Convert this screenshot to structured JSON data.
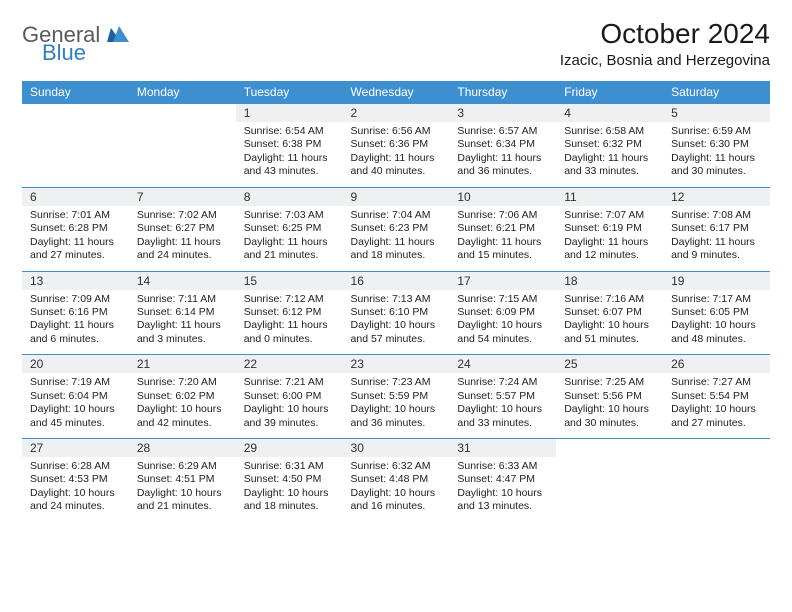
{
  "logo": {
    "general": "General",
    "blue": "Blue"
  },
  "title": "October 2024",
  "location": "Izacic, Bosnia and Herzegovina",
  "colors": {
    "header_bg": "#3d8fcf",
    "header_text": "#ffffff",
    "daynum_bg": "#eef0f2",
    "rule": "#3d8fcf",
    "logo_gray": "#5a5a5a",
    "logo_blue": "#2f7fc1"
  },
  "typography": {
    "title_fontsize": 28,
    "location_fontsize": 15,
    "dayhead_fontsize": 12,
    "daynum_fontsize": 12,
    "body_fontsize": 10.5
  },
  "day_headers": [
    "Sunday",
    "Monday",
    "Tuesday",
    "Wednesday",
    "Thursday",
    "Friday",
    "Saturday"
  ],
  "weeks": [
    [
      {
        "n": "",
        "lines": []
      },
      {
        "n": "",
        "lines": []
      },
      {
        "n": "1",
        "lines": [
          "Sunrise: 6:54 AM",
          "Sunset: 6:38 PM",
          "Daylight: 11 hours",
          "and 43 minutes."
        ]
      },
      {
        "n": "2",
        "lines": [
          "Sunrise: 6:56 AM",
          "Sunset: 6:36 PM",
          "Daylight: 11 hours",
          "and 40 minutes."
        ]
      },
      {
        "n": "3",
        "lines": [
          "Sunrise: 6:57 AM",
          "Sunset: 6:34 PM",
          "Daylight: 11 hours",
          "and 36 minutes."
        ]
      },
      {
        "n": "4",
        "lines": [
          "Sunrise: 6:58 AM",
          "Sunset: 6:32 PM",
          "Daylight: 11 hours",
          "and 33 minutes."
        ]
      },
      {
        "n": "5",
        "lines": [
          "Sunrise: 6:59 AM",
          "Sunset: 6:30 PM",
          "Daylight: 11 hours",
          "and 30 minutes."
        ]
      }
    ],
    [
      {
        "n": "6",
        "lines": [
          "Sunrise: 7:01 AM",
          "Sunset: 6:28 PM",
          "Daylight: 11 hours",
          "and 27 minutes."
        ]
      },
      {
        "n": "7",
        "lines": [
          "Sunrise: 7:02 AM",
          "Sunset: 6:27 PM",
          "Daylight: 11 hours",
          "and 24 minutes."
        ]
      },
      {
        "n": "8",
        "lines": [
          "Sunrise: 7:03 AM",
          "Sunset: 6:25 PM",
          "Daylight: 11 hours",
          "and 21 minutes."
        ]
      },
      {
        "n": "9",
        "lines": [
          "Sunrise: 7:04 AM",
          "Sunset: 6:23 PM",
          "Daylight: 11 hours",
          "and 18 minutes."
        ]
      },
      {
        "n": "10",
        "lines": [
          "Sunrise: 7:06 AM",
          "Sunset: 6:21 PM",
          "Daylight: 11 hours",
          "and 15 minutes."
        ]
      },
      {
        "n": "11",
        "lines": [
          "Sunrise: 7:07 AM",
          "Sunset: 6:19 PM",
          "Daylight: 11 hours",
          "and 12 minutes."
        ]
      },
      {
        "n": "12",
        "lines": [
          "Sunrise: 7:08 AM",
          "Sunset: 6:17 PM",
          "Daylight: 11 hours",
          "and 9 minutes."
        ]
      }
    ],
    [
      {
        "n": "13",
        "lines": [
          "Sunrise: 7:09 AM",
          "Sunset: 6:16 PM",
          "Daylight: 11 hours",
          "and 6 minutes."
        ]
      },
      {
        "n": "14",
        "lines": [
          "Sunrise: 7:11 AM",
          "Sunset: 6:14 PM",
          "Daylight: 11 hours",
          "and 3 minutes."
        ]
      },
      {
        "n": "15",
        "lines": [
          "Sunrise: 7:12 AM",
          "Sunset: 6:12 PM",
          "Daylight: 11 hours",
          "and 0 minutes."
        ]
      },
      {
        "n": "16",
        "lines": [
          "Sunrise: 7:13 AM",
          "Sunset: 6:10 PM",
          "Daylight: 10 hours",
          "and 57 minutes."
        ]
      },
      {
        "n": "17",
        "lines": [
          "Sunrise: 7:15 AM",
          "Sunset: 6:09 PM",
          "Daylight: 10 hours",
          "and 54 minutes."
        ]
      },
      {
        "n": "18",
        "lines": [
          "Sunrise: 7:16 AM",
          "Sunset: 6:07 PM",
          "Daylight: 10 hours",
          "and 51 minutes."
        ]
      },
      {
        "n": "19",
        "lines": [
          "Sunrise: 7:17 AM",
          "Sunset: 6:05 PM",
          "Daylight: 10 hours",
          "and 48 minutes."
        ]
      }
    ],
    [
      {
        "n": "20",
        "lines": [
          "Sunrise: 7:19 AM",
          "Sunset: 6:04 PM",
          "Daylight: 10 hours",
          "and 45 minutes."
        ]
      },
      {
        "n": "21",
        "lines": [
          "Sunrise: 7:20 AM",
          "Sunset: 6:02 PM",
          "Daylight: 10 hours",
          "and 42 minutes."
        ]
      },
      {
        "n": "22",
        "lines": [
          "Sunrise: 7:21 AM",
          "Sunset: 6:00 PM",
          "Daylight: 10 hours",
          "and 39 minutes."
        ]
      },
      {
        "n": "23",
        "lines": [
          "Sunrise: 7:23 AM",
          "Sunset: 5:59 PM",
          "Daylight: 10 hours",
          "and 36 minutes."
        ]
      },
      {
        "n": "24",
        "lines": [
          "Sunrise: 7:24 AM",
          "Sunset: 5:57 PM",
          "Daylight: 10 hours",
          "and 33 minutes."
        ]
      },
      {
        "n": "25",
        "lines": [
          "Sunrise: 7:25 AM",
          "Sunset: 5:56 PM",
          "Daylight: 10 hours",
          "and 30 minutes."
        ]
      },
      {
        "n": "26",
        "lines": [
          "Sunrise: 7:27 AM",
          "Sunset: 5:54 PM",
          "Daylight: 10 hours",
          "and 27 minutes."
        ]
      }
    ],
    [
      {
        "n": "27",
        "lines": [
          "Sunrise: 6:28 AM",
          "Sunset: 4:53 PM",
          "Daylight: 10 hours",
          "and 24 minutes."
        ]
      },
      {
        "n": "28",
        "lines": [
          "Sunrise: 6:29 AM",
          "Sunset: 4:51 PM",
          "Daylight: 10 hours",
          "and 21 minutes."
        ]
      },
      {
        "n": "29",
        "lines": [
          "Sunrise: 6:31 AM",
          "Sunset: 4:50 PM",
          "Daylight: 10 hours",
          "and 18 minutes."
        ]
      },
      {
        "n": "30",
        "lines": [
          "Sunrise: 6:32 AM",
          "Sunset: 4:48 PM",
          "Daylight: 10 hours",
          "and 16 minutes."
        ]
      },
      {
        "n": "31",
        "lines": [
          "Sunrise: 6:33 AM",
          "Sunset: 4:47 PM",
          "Daylight: 10 hours",
          "and 13 minutes."
        ]
      },
      {
        "n": "",
        "lines": []
      },
      {
        "n": "",
        "lines": []
      }
    ]
  ]
}
